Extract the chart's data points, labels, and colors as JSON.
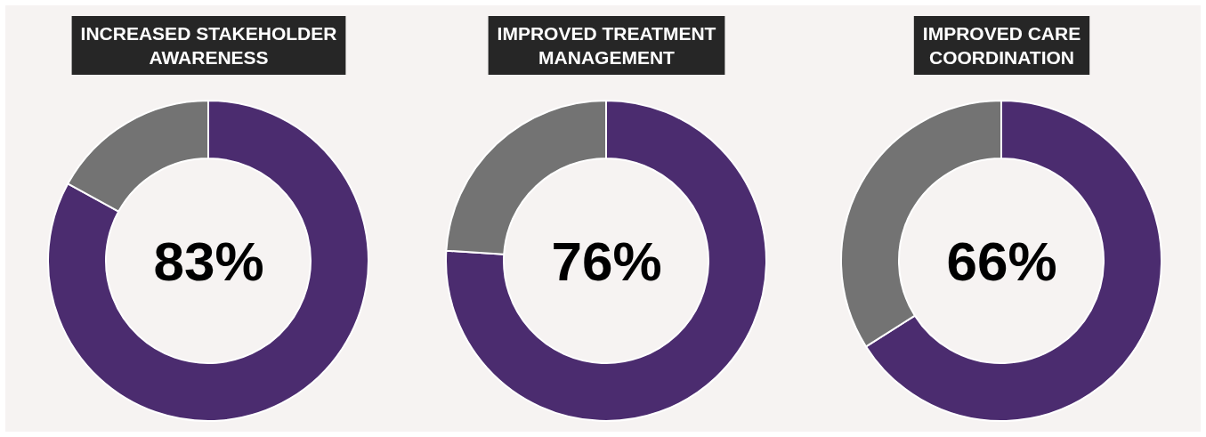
{
  "chart_data": [
    {
      "type": "donut",
      "title": "INCREASED STAKEHOLDER\nAWARENESS",
      "categories": [
        null,
        null
      ],
      "values": [
        83,
        17
      ],
      "colors": [
        "#4b2c6f",
        "#737373"
      ],
      "annotations": [
        "83%"
      ]
    },
    {
      "type": "donut",
      "title": "IMPROVED TREATMENT\nMANAGEMENT",
      "categories": [
        null,
        null
      ],
      "values": [
        76,
        24
      ],
      "colors": [
        "#4b2c6f",
        "#737373"
      ],
      "annotations": [
        "76%"
      ]
    },
    {
      "type": "donut",
      "title": "IMPROVED CARE\nCOORDINATION",
      "categories": [
        null,
        null
      ],
      "values": [
        66,
        34
      ],
      "colors": [
        "#4b2c6f",
        "#737373"
      ],
      "annotations": [
        "66%"
      ]
    }
  ]
}
